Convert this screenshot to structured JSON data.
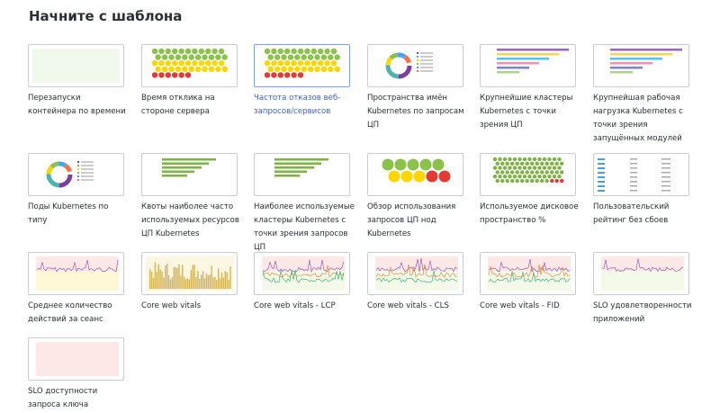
{
  "header": {
    "title": "Начните с шаблона"
  },
  "templates": [
    {
      "label": "Перезапуски контейнера по времени"
    },
    {
      "label": "Время отклика на стороне сервера"
    },
    {
      "label": "Частота отказов веб-запросов/сервисов"
    },
    {
      "label": "Пространства имён Kubernetes по запросам ЦП"
    },
    {
      "label": "Крупнейшие кластеры Kubernetes с точки зрения ЦП"
    },
    {
      "label": "Крупнейшая рабочая нагрузка Kubernetes с точки зрения запущённых модулей"
    },
    {
      "label": "Поды Kubernetes по типу"
    },
    {
      "label": "Квоты наиболее часто используемых ресурсов ЦП Kubernetes"
    },
    {
      "label": "Наиболее используемые кластеры Kubernetes с точки зрения запросов ЦП"
    },
    {
      "label": "Обзор использования запросов ЦП нод Kubernetes"
    },
    {
      "label": "Используемое дисковое пространство %"
    },
    {
      "label": "Пользовательский рейтинг без сбоев"
    },
    {
      "label": "Среднее количество действий за сеанс"
    },
    {
      "label": "Core web vitals"
    },
    {
      "label": "Core web vitals - LCP"
    },
    {
      "label": "Core web vitals - CLS"
    },
    {
      "label": "Core web vitals - FID"
    },
    {
      "label": "SLO удовлетворенности приложений"
    },
    {
      "label": "SLO доступности запроса ключа"
    }
  ]
}
